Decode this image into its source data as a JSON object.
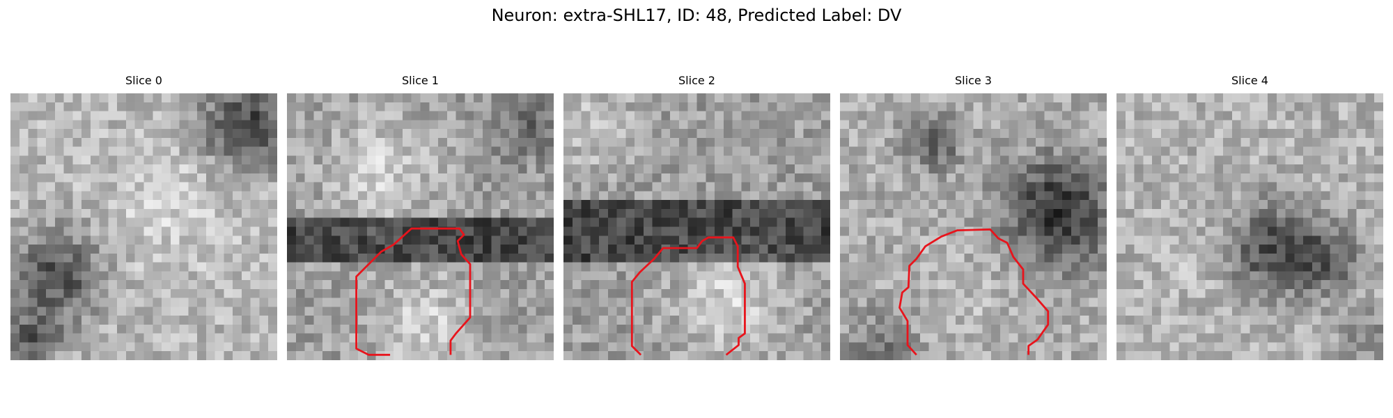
{
  "figure": {
    "title": "Neuron: extra-SHL17, ID: 48, Predicted Label: DV"
  },
  "panels": [
    {
      "title": "Slice 0",
      "has_contour": false
    },
    {
      "title": "Slice 1",
      "has_contour": true
    },
    {
      "title": "Slice 2",
      "has_contour": true
    },
    {
      "title": "Slice 3",
      "has_contour": true
    },
    {
      "title": "Slice 4",
      "has_contour": false
    }
  ],
  "colors": {
    "contour": "#e8141c",
    "colormap": "gray"
  }
}
